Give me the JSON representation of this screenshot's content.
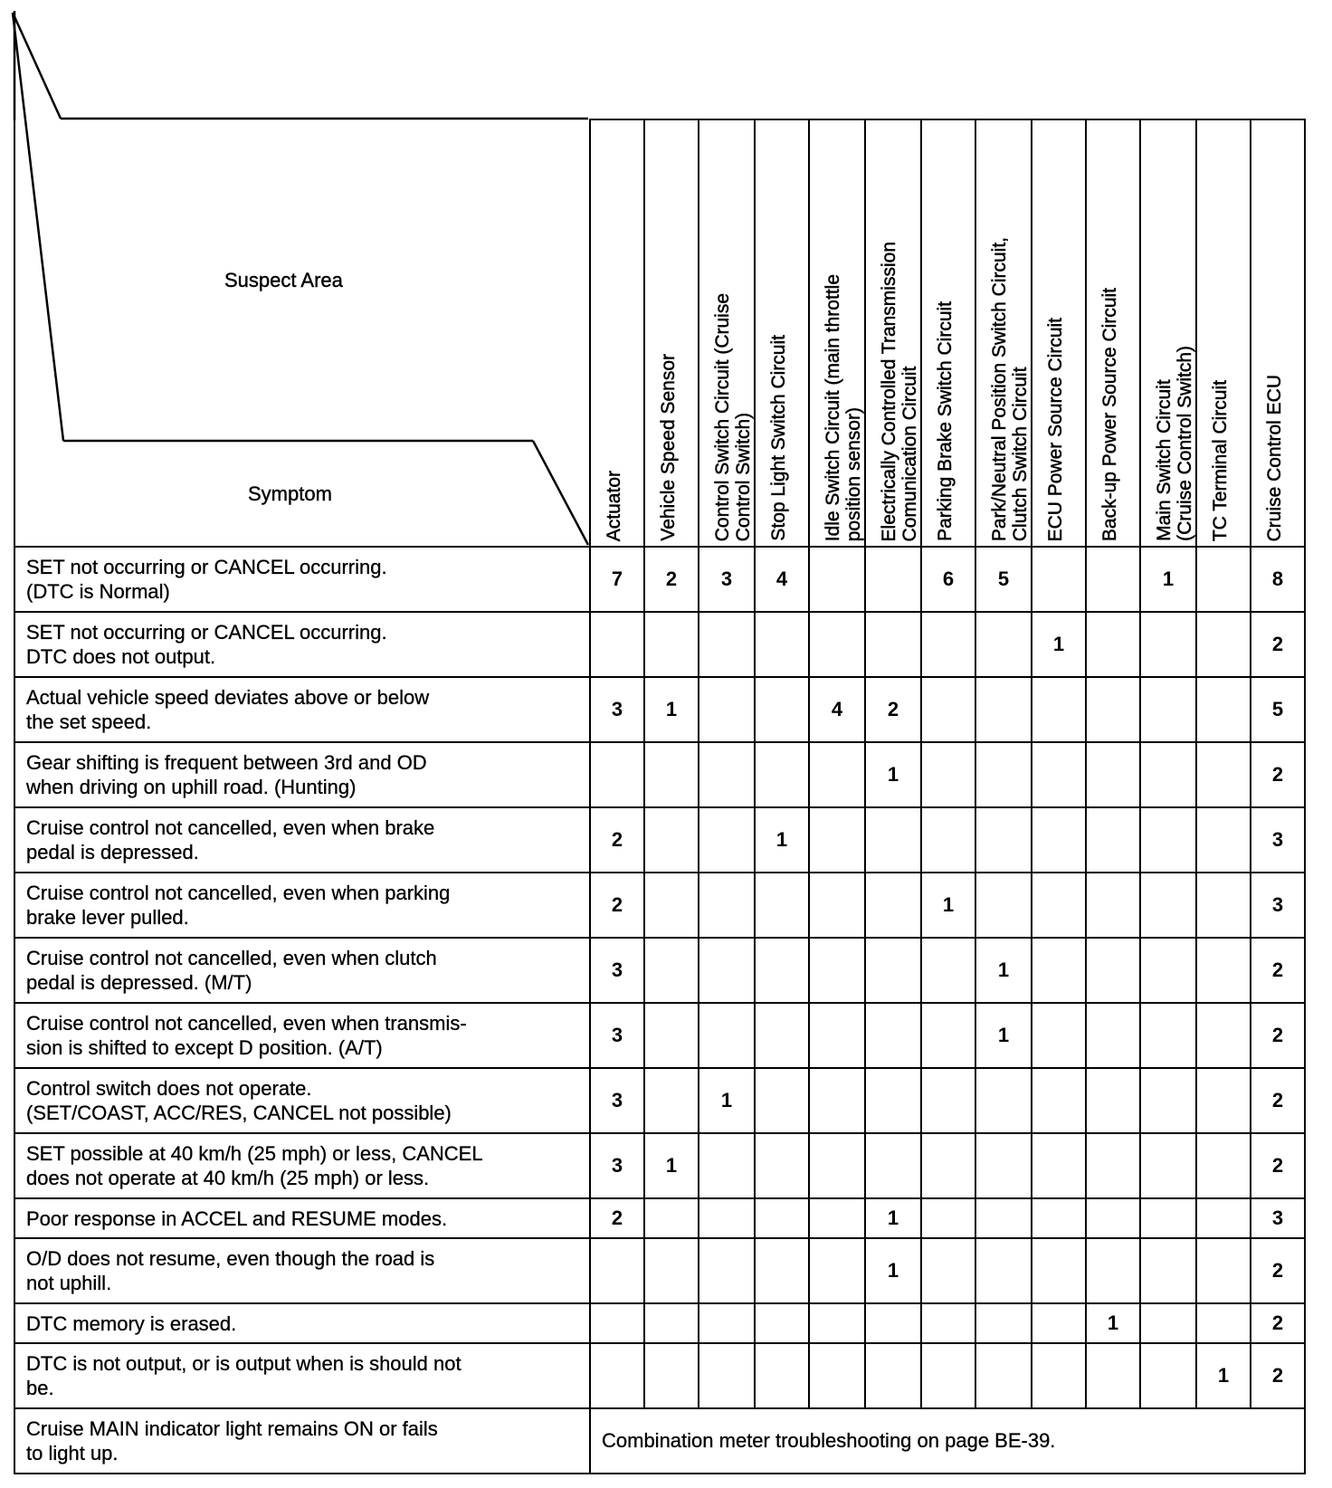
{
  "corner": {
    "suspect_area": "Suspect Area",
    "symptom": "Symptom"
  },
  "columns": [
    "Actuator",
    "Vehicle Speed Sensor",
    "Control Switch Circuit (Cruise\nControl Switch)",
    "Stop Light Switch Circuit",
    "Idle Switch Circuit (main throttle\nposition sensor)",
    "Electrically Controlled Transmission\nComunication Circuit",
    "Parking Brake Switch Circuit",
    "Park/Neutral Position Switch Circuit,\nClutch Switch Circuit",
    "ECU Power Source Circuit",
    "Back-up Power Source Circuit",
    "Main Switch Circuit\n(Cruise Control Switch)",
    "TC Terminal Circuit",
    "Cruise Control ECU"
  ],
  "rows": [
    {
      "symptom": "SET not occurring or CANCEL occurring.\n(DTC is Normal)",
      "values": [
        "7",
        "2",
        "3",
        "4",
        "",
        "",
        "6",
        "5",
        "",
        "",
        "1",
        "",
        "8"
      ]
    },
    {
      "symptom": "SET not occurring or CANCEL occurring.\nDTC does not output.",
      "values": [
        "",
        "",
        "",
        "",
        "",
        "",
        "",
        "",
        "1",
        "",
        "",
        "",
        "2"
      ]
    },
    {
      "symptom": "Actual vehicle speed deviates above or below\nthe set speed.",
      "values": [
        "3",
        "1",
        "",
        "",
        "4",
        "2",
        "",
        "",
        "",
        "",
        "",
        "",
        "5"
      ]
    },
    {
      "symptom": "Gear shifting is frequent between 3rd and OD\nwhen driving on uphill road. (Hunting)",
      "values": [
        "",
        "",
        "",
        "",
        "",
        "1",
        "",
        "",
        "",
        "",
        "",
        "",
        "2"
      ]
    },
    {
      "symptom": "Cruise control not cancelled, even when brake\npedal is depressed.",
      "values": [
        "2",
        "",
        "",
        "1",
        "",
        "",
        "",
        "",
        "",
        "",
        "",
        "",
        "3"
      ]
    },
    {
      "symptom": "Cruise control not cancelled, even when parking\nbrake lever pulled.",
      "values": [
        "2",
        "",
        "",
        "",
        "",
        "",
        "1",
        "",
        "",
        "",
        "",
        "",
        "3"
      ]
    },
    {
      "symptom": "Cruise control not cancelled, even when clutch\npedal is depressed. (M/T)",
      "values": [
        "3",
        "",
        "",
        "",
        "",
        "",
        "",
        "1",
        "",
        "",
        "",
        "",
        "2"
      ]
    },
    {
      "symptom": "Cruise control not cancelled, even when transmis-\nsion is shifted to except D position. (A/T)",
      "values": [
        "3",
        "",
        "",
        "",
        "",
        "",
        "",
        "1",
        "",
        "",
        "",
        "",
        "2"
      ]
    },
    {
      "symptom": "Control switch does not operate.\n(SET/COAST, ACC/RES, CANCEL not possible)",
      "values": [
        "3",
        "",
        "1",
        "",
        "",
        "",
        "",
        "",
        "",
        "",
        "",
        "",
        "2"
      ]
    },
    {
      "symptom": "SET possible at 40 km/h (25 mph) or less, CANCEL\ndoes not operate at 40 km/h (25 mph) or less.",
      "values": [
        "3",
        "1",
        "",
        "",
        "",
        "",
        "",
        "",
        "",
        "",
        "",
        "",
        "2"
      ]
    },
    {
      "symptom": "Poor response in ACCEL and RESUME modes.",
      "values": [
        "2",
        "",
        "",
        "",
        "",
        "1",
        "",
        "",
        "",
        "",
        "",
        "",
        "3"
      ]
    },
    {
      "symptom": "O/D does not resume, even though the road is\nnot uphill.",
      "values": [
        "",
        "",
        "",
        "",
        "",
        "1",
        "",
        "",
        "",
        "",
        "",
        "",
        "2"
      ]
    },
    {
      "symptom": "DTC memory is erased.",
      "values": [
        "",
        "",
        "",
        "",
        "",
        "",
        "",
        "",
        "",
        "1",
        "",
        "",
        "2"
      ]
    },
    {
      "symptom": "DTC is not output, or is output when is should not\nbe.",
      "values": [
        "",
        "",
        "",
        "",
        "",
        "",
        "",
        "",
        "",
        "",
        "",
        "1",
        "2"
      ]
    }
  ],
  "last_row": {
    "symptom": "Cruise MAIN indicator light remains ON or fails\nto light up.",
    "note": "Combination meter troubleshooting on page BE-39."
  }
}
